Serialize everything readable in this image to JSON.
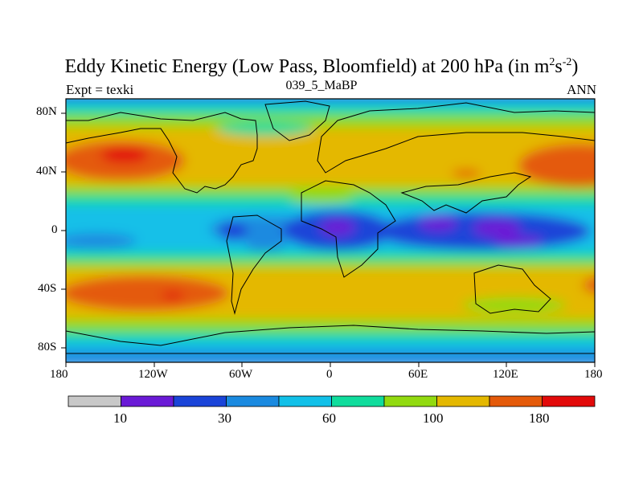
{
  "title_main": "Eddy Kinetic Energy (Low Pass, Bloomfield) at 200 hPa (in m",
  "title_exp1": "2",
  "title_s": "s",
  "title_exp2": "-2",
  "title_close": ")",
  "subtitle": "039_5_MaBP",
  "left_subtitle": "Expt = texki",
  "right_subtitle": "ANN",
  "chart_data": {
    "type": "heatmap",
    "title": "Eddy Kinetic Energy (Low Pass, Bloomfield) at 200 hPa (in m2s-2)",
    "subtitle": "039_5_MaBP",
    "projection": "cylindrical equidistant",
    "x_range_deg": [
      -180,
      180
    ],
    "y_range_deg": [
      -90,
      90
    ],
    "x_tick_labels": [
      "180",
      "120W",
      "60W",
      "0",
      "60E",
      "120E",
      "180"
    ],
    "y_tick_labels": [
      "80N",
      "40N",
      "0",
      "40S",
      "80S"
    ],
    "colorbar_labels": [
      "10",
      "30",
      "60",
      "100",
      "180"
    ],
    "colorbar_colors": [
      "#c8c8c8",
      "#6a1ad6",
      "#1a44d8",
      "#1a8ae0",
      "#12c0e8",
      "#10dc9c",
      "#92da10",
      "#e4b800",
      "#e45a0a",
      "#e20a0a"
    ],
    "bands_description": "Latitude bands: low values (blue/purple) near the equator, maxima (orange/red) in midlatitude storm tracks near 45N and 45S, yellow in subtropics."
  }
}
